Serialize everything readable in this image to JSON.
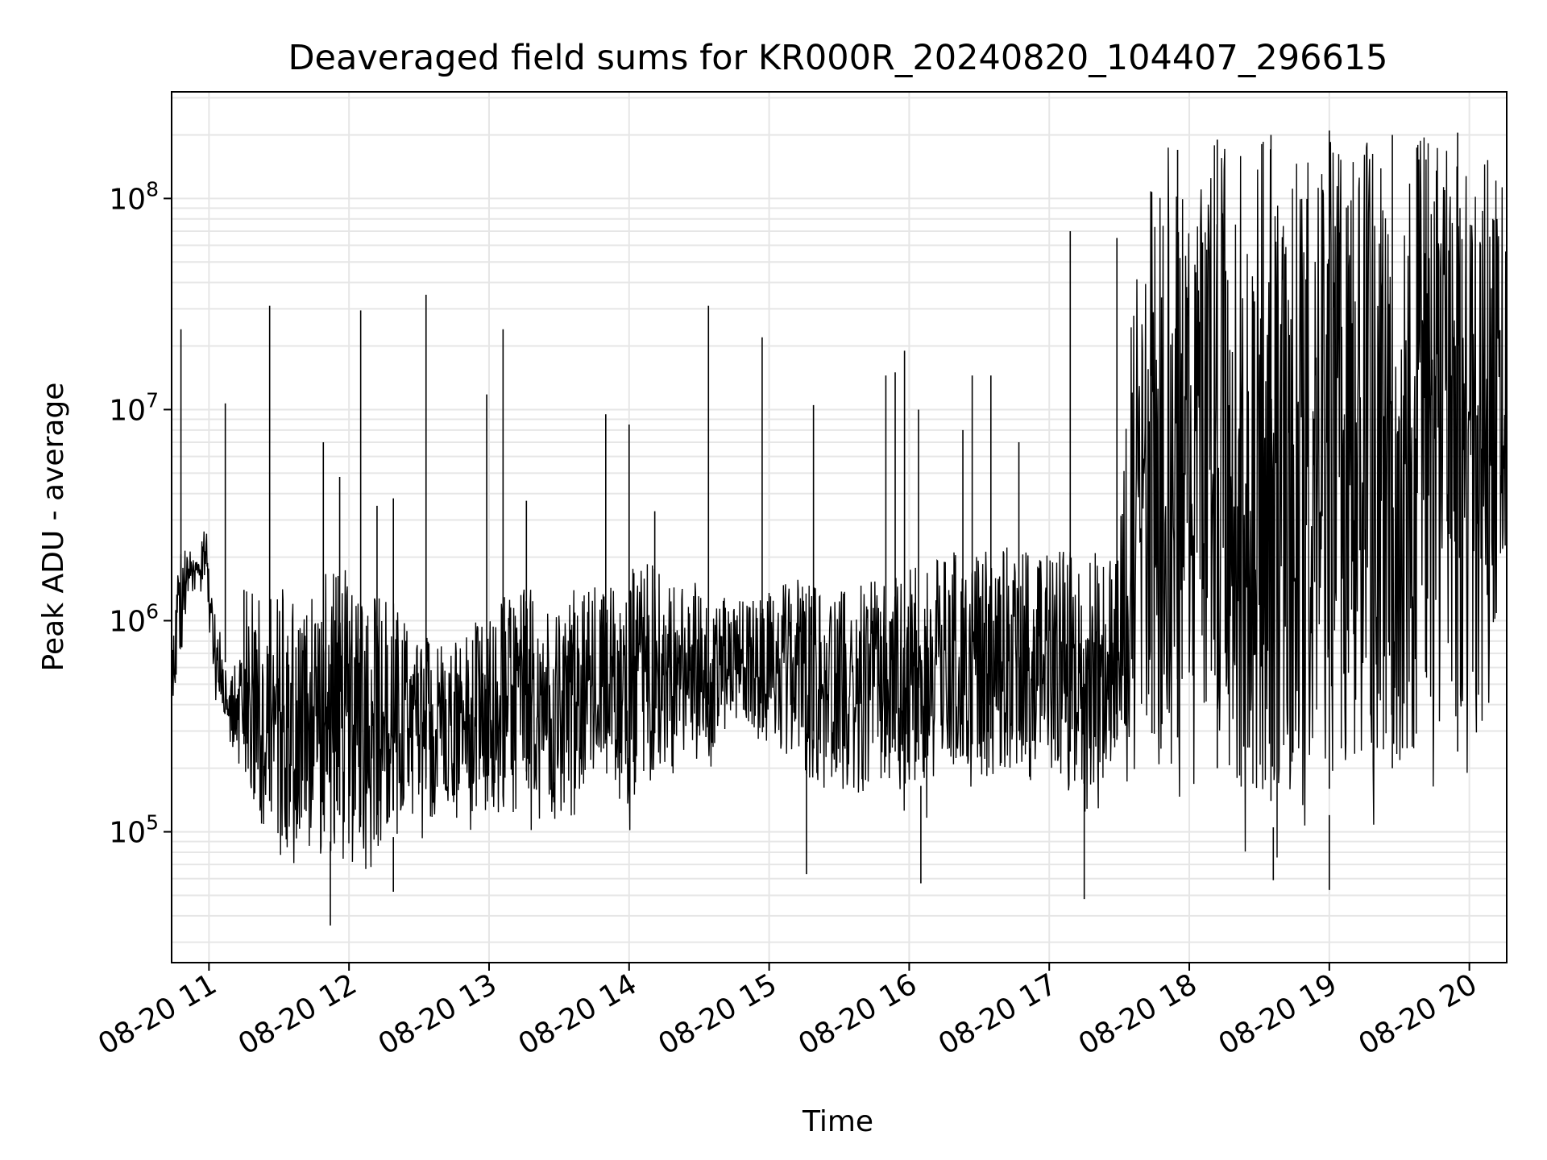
{
  "chart_data": {
    "type": "line",
    "title": "Deaveraged field sums for KR000R_20240820_104407_296615",
    "xlabel": "Time",
    "ylabel": "Peak ADU - average",
    "yscale": "log",
    "grid": true,
    "series_color": "#000000",
    "grid_color": "#e6e6e6",
    "xlim": [
      "2024-08-20 10:44",
      "2024-08-20 20:16"
    ],
    "ylim": [
      24000,
      320000000
    ],
    "x_ticks": [
      {
        "value": "2024-08-20 11:00",
        "label": "08-20 11"
      },
      {
        "value": "2024-08-20 12:00",
        "label": "08-20 12"
      },
      {
        "value": "2024-08-20 13:00",
        "label": "08-20 13"
      },
      {
        "value": "2024-08-20 14:00",
        "label": "08-20 14"
      },
      {
        "value": "2024-08-20 15:00",
        "label": "08-20 15"
      },
      {
        "value": "2024-08-20 16:00",
        "label": "08-20 16"
      },
      {
        "value": "2024-08-20 17:00",
        "label": "08-20 17"
      },
      {
        "value": "2024-08-20 18:00",
        "label": "08-20 18"
      },
      {
        "value": "2024-08-20 19:00",
        "label": "08-20 19"
      },
      {
        "value": "2024-08-20 20:00",
        "label": "08-20 20"
      }
    ],
    "y_ticks": [
      {
        "value": 100000,
        "base": "10",
        "exp": "5"
      },
      {
        "value": 1000000,
        "base": "10",
        "exp": "6"
      },
      {
        "value": 10000000,
        "base": "10",
        "exp": "7"
      },
      {
        "value": 100000000,
        "base": "10",
        "exp": "8"
      }
    ],
    "series": [
      {
        "x": [
          "2024-08-20 10:44",
          "2024-08-20 10:47",
          "2024-08-20 10:51",
          "2024-08-20 10:55",
          "2024-08-20 10:59",
          "2024-08-20 11:03",
          "2024-08-20 11:08",
          "2024-08-20 11:12",
          "2024-08-20 11:15",
          "2024-08-20 11:18",
          "2024-08-20 11:22",
          "2024-08-20 11:26",
          "2024-08-20 11:30",
          "2024-08-20 11:35",
          "2024-08-20 11:40",
          "2024-08-20 11:45",
          "2024-08-20 11:50",
          "2024-08-20 11:55",
          "2024-08-20 12:00",
          "2024-08-20 12:06",
          "2024-08-20 12:12",
          "2024-08-20 12:18",
          "2024-08-20 12:24",
          "2024-08-20 12:30",
          "2024-08-20 12:36",
          "2024-08-20 12:42",
          "2024-08-20 12:48",
          "2024-08-20 12:54",
          "2024-08-20 13:00",
          "2024-08-20 13:06",
          "2024-08-20 13:12",
          "2024-08-20 13:18",
          "2024-08-20 13:24",
          "2024-08-20 13:30",
          "2024-08-20 13:36",
          "2024-08-20 13:42",
          "2024-08-20 13:48",
          "2024-08-20 13:54",
          "2024-08-20 14:00",
          "2024-08-20 14:06",
          "2024-08-20 14:12",
          "2024-08-20 14:18",
          "2024-08-20 14:24",
          "2024-08-20 14:30",
          "2024-08-20 14:36",
          "2024-08-20 14:42",
          "2024-08-20 14:48",
          "2024-08-20 14:54",
          "2024-08-20 15:00",
          "2024-08-20 15:06",
          "2024-08-20 15:12",
          "2024-08-20 15:18",
          "2024-08-20 15:24",
          "2024-08-20 15:30",
          "2024-08-20 15:36",
          "2024-08-20 15:42",
          "2024-08-20 15:48",
          "2024-08-20 15:54",
          "2024-08-20 16:00",
          "2024-08-20 16:06",
          "2024-08-20 16:12",
          "2024-08-20 16:18",
          "2024-08-20 16:24",
          "2024-08-20 16:30",
          "2024-08-20 16:36",
          "2024-08-20 16:42",
          "2024-08-20 16:48",
          "2024-08-20 16:54",
          "2024-08-20 17:00",
          "2024-08-20 17:06",
          "2024-08-20 17:12",
          "2024-08-20 17:18",
          "2024-08-20 17:24",
          "2024-08-20 17:30",
          "2024-08-20 17:36",
          "2024-08-20 17:42",
          "2024-08-20 17:48",
          "2024-08-20 17:54",
          "2024-08-20 18:00",
          "2024-08-20 18:06",
          "2024-08-20 18:12",
          "2024-08-20 18:18",
          "2024-08-20 18:24",
          "2024-08-20 18:30",
          "2024-08-20 18:36",
          "2024-08-20 18:42",
          "2024-08-20 18:48",
          "2024-08-20 18:54",
          "2024-08-20 19:00",
          "2024-08-20 19:06",
          "2024-08-20 19:12",
          "2024-08-20 19:18",
          "2024-08-20 19:24",
          "2024-08-20 19:30",
          "2024-08-20 19:36",
          "2024-08-20 19:42",
          "2024-08-20 19:48",
          "2024-08-20 19:54",
          "2024-08-20 20:00",
          "2024-08-20 20:06",
          "2024-08-20 20:12",
          "2024-08-20 20:16"
        ],
        "lo": [
          400000,
          400000,
          1200000,
          1300000,
          1200000,
          400000,
          300000,
          180000,
          130000,
          100000,
          80000,
          70000,
          60000,
          60000,
          60000,
          60000,
          60000,
          60000,
          60000,
          60000,
          60000,
          60000,
          80000,
          90000,
          90000,
          100000,
          90000,
          100000,
          90000,
          80000,
          90000,
          100000,
          100000,
          110000,
          110000,
          130000,
          130000,
          150000,
          90000,
          130000,
          150000,
          180000,
          180000,
          200000,
          200000,
          250000,
          250000,
          250000,
          250000,
          180000,
          180000,
          150000,
          150000,
          130000,
          110000,
          110000,
          110000,
          120000,
          110000,
          110000,
          120000,
          130000,
          130000,
          130000,
          140000,
          150000,
          150000,
          150000,
          140000,
          120000,
          120000,
          110000,
          120000,
          140000,
          150000,
          150000,
          140000,
          140000,
          140000,
          120000,
          100000,
          90000,
          80000,
          70000,
          70000,
          70000,
          80000,
          90000,
          80000,
          90000,
          90000,
          90000,
          100000,
          100000,
          100000,
          110000,
          110000,
          120000,
          120000,
          150000,
          600000,
          1500000
        ],
        "hi": [
          800000,
          2500000,
          2200000,
          2000000,
          3000000,
          1000000,
          700000,
          600000,
          1500000,
          1400000,
          1500000,
          1500000,
          1500000,
          1500000,
          1600000,
          1600000,
          1800000,
          1700000,
          1800000,
          1800000,
          1600000,
          1400000,
          1000000,
          800000,
          900000,
          800000,
          900000,
          1000000,
          1000000,
          1500000,
          1500000,
          1500000,
          1400000,
          1300000,
          1400000,
          1500000,
          1500000,
          1600000,
          1700000,
          2000000,
          2000000,
          1700000,
          1600000,
          1500000,
          1500000,
          1300000,
          1300000,
          1300000,
          1400000,
          1500000,
          1800000,
          1600000,
          1400000,
          1400000,
          1500000,
          1500000,
          1600000,
          1600000,
          1800000,
          1800000,
          2000000,
          2200000,
          2000000,
          2200000,
          2400000,
          2400000,
          2200000,
          2000000,
          2200000,
          2400000,
          2500000,
          2200000,
          2200000,
          3000000,
          40000000,
          100000000,
          180000000,
          190000000,
          190000000,
          200000000,
          200000000,
          200000000,
          200000000,
          200000000,
          200000000,
          200000000,
          200000000,
          200000000,
          200000000,
          200000000,
          200000000,
          200000000,
          200000000,
          200000000,
          200000000,
          200000000,
          200000000,
          200000000,
          200000000,
          180000000,
          150000000,
          120000000
        ]
      }
    ],
    "spikes": [
      {
        "x": "2024-08-20 10:48",
        "y": 24000000
      },
      {
        "x": "2024-08-20 11:07",
        "y": 10700000
      },
      {
        "x": "2024-08-20 11:15",
        "y": 1400000
      },
      {
        "x": "2024-08-20 11:26",
        "y": 31000000
      },
      {
        "x": "2024-08-20 11:49",
        "y": 7000000
      },
      {
        "x": "2024-08-20 11:56",
        "y": 4800000
      },
      {
        "x": "2024-08-20 12:05",
        "y": 29500000
      },
      {
        "x": "2024-08-20 12:12",
        "y": 3500000
      },
      {
        "x": "2024-08-20 12:19",
        "y": 3800000
      },
      {
        "x": "2024-08-20 12:33",
        "y": 35000000
      },
      {
        "x": "2024-08-20 12:59",
        "y": 11800000
      },
      {
        "x": "2024-08-20 13:06",
        "y": 24000000
      },
      {
        "x": "2024-08-20 13:16",
        "y": 3700000
      },
      {
        "x": "2024-08-20 13:50",
        "y": 9500000
      },
      {
        "x": "2024-08-20 14:00",
        "y": 8500000
      },
      {
        "x": "2024-08-20 14:11",
        "y": 3300000
      },
      {
        "x": "2024-08-20 14:34",
        "y": 31000000
      },
      {
        "x": "2024-08-20 14:57",
        "y": 22000000
      },
      {
        "x": "2024-08-20 15:19",
        "y": 10500000
      },
      {
        "x": "2024-08-20 15:50",
        "y": 14500000
      },
      {
        "x": "2024-08-20 15:54",
        "y": 15000000
      },
      {
        "x": "2024-08-20 15:58",
        "y": 19000000
      },
      {
        "x": "2024-08-20 16:04",
        "y": 10000000
      },
      {
        "x": "2024-08-20 16:23",
        "y": 8000000
      },
      {
        "x": "2024-08-20 16:27",
        "y": 14500000
      },
      {
        "x": "2024-08-20 16:35",
        "y": 14500000
      },
      {
        "x": "2024-08-20 16:47",
        "y": 7000000
      },
      {
        "x": "2024-08-20 17:09",
        "y": 70000000
      },
      {
        "x": "2024-08-20 17:29",
        "y": 65000000
      },
      {
        "x": "2024-08-20 17:44",
        "y": 50000000
      },
      {
        "x": "2024-08-20 17:55",
        "y": 170000000
      },
      {
        "x": "2024-08-20 18:12",
        "y": 190000000
      },
      {
        "x": "2024-08-20 18:35",
        "y": 200000000
      },
      {
        "x": "2024-08-20 19:00",
        "y": 210000000
      },
      {
        "x": "2024-08-20 19:27",
        "y": 200000000
      },
      {
        "x": "2024-08-20 19:55",
        "y": 205000000
      }
    ],
    "dips": [
      {
        "x": "2024-08-20 11:52",
        "y": 36000
      },
      {
        "x": "2024-08-20 12:19",
        "y": 52000
      },
      {
        "x": "2024-08-20 15:16",
        "y": 63000
      },
      {
        "x": "2024-08-20 16:05",
        "y": 57000
      },
      {
        "x": "2024-08-20 17:15",
        "y": 48000
      },
      {
        "x": "2024-08-20 18:36",
        "y": 59000
      },
      {
        "x": "2024-08-20 19:00",
        "y": 53000
      }
    ]
  }
}
